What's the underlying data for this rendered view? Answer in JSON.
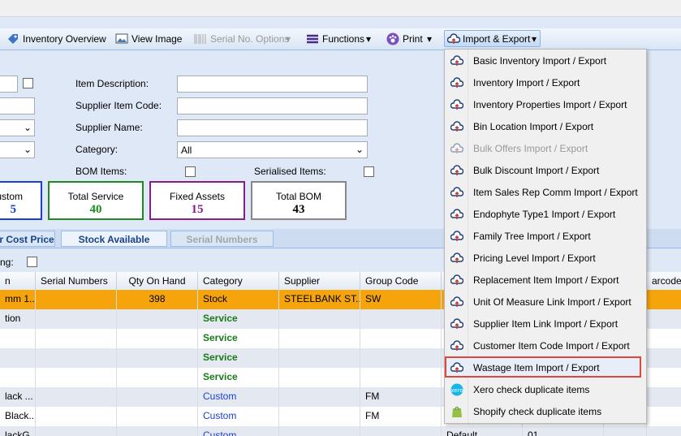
{
  "toolbar": {
    "items": [
      "Inventory Overview",
      "View Image",
      "Serial No. Options",
      "Functions",
      "Print",
      "Import & Export"
    ]
  },
  "form": {
    "item_description": "Item Description:",
    "supplier_item_code": "Supplier Item Code:",
    "supplier_name": "Supplier Name:",
    "category": "Category:",
    "category_value": "All",
    "bom_items": "BOM Items:",
    "serialised_items": "Serialised Items:"
  },
  "stats": [
    {
      "label": "ustom",
      "value": 5
    },
    {
      "label": "Total Service",
      "value": 40
    },
    {
      "label": "Fixed Assets",
      "value": 15
    },
    {
      "label": "Total BOM",
      "value": 43
    }
  ],
  "tabs": [
    "r Cost Price",
    "Stock Available",
    "Serial Numbers"
  ],
  "filter_label": "ng:",
  "table": {
    "headers": [
      "n",
      "Serial Numbers",
      "Qty On Hand",
      "Category",
      "Supplier",
      "Group Code",
      null,
      null,
      null,
      "arcode"
    ],
    "rows": [
      [
        "mm 1...",
        null,
        398,
        "Stock",
        "STEELBANK ST...",
        "SW",
        null,
        null,
        null,
        null
      ],
      [
        "tion",
        null,
        null,
        "Service",
        null,
        null,
        null,
        null,
        null,
        null
      ],
      [
        null,
        null,
        null,
        "Service",
        null,
        null,
        null,
        null,
        null,
        null
      ],
      [
        null,
        null,
        null,
        "Service",
        null,
        null,
        null,
        null,
        null,
        null
      ],
      [
        null,
        null,
        null,
        "Service",
        null,
        null,
        null,
        null,
        null,
        null
      ],
      [
        "lack ...",
        null,
        null,
        "Custom",
        null,
        "FM",
        null,
        null,
        null,
        null
      ],
      [
        "Black...",
        null,
        null,
        "Custom",
        null,
        "FM",
        null,
        null,
        null,
        null
      ],
      [
        "lackG",
        null,
        null,
        "Custom",
        null,
        null,
        "Default",
        "01",
        null,
        null
      ]
    ]
  },
  "menu": {
    "items": [
      "Basic Inventory Import / Export",
      "Inventory Import / Export",
      "Inventory Properties Import / Export",
      "Bin Location Import / Export",
      "Bulk Offers Import / Export",
      "Bulk Discount Import / Export",
      "Item Sales Rep Comm Import / Export",
      "Endophyte Type1 Import / Export",
      "Family Tree Import / Export",
      "Pricing Level Import / Export",
      "Replacement Item Import / Export",
      "Unit Of Measure Link Import / Export",
      "Supplier Item Link Import / Export",
      "Customer Item Code Import / Export",
      "Wastage Item Import / Export",
      "Xero check duplicate items",
      "Shopify check duplicate items"
    ]
  }
}
